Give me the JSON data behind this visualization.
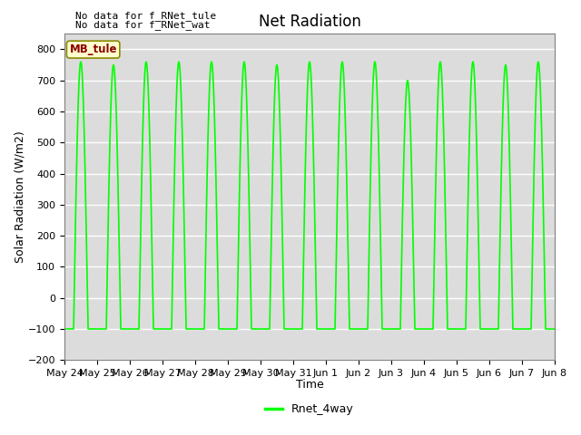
{
  "title": "Net Radiation",
  "xlabel": "Time",
  "ylabel": "Solar Radiation (W/m2)",
  "ylim": [
    -200,
    850
  ],
  "yticks": [
    -200,
    -100,
    0,
    100,
    200,
    300,
    400,
    500,
    600,
    700,
    800
  ],
  "line_color": "#00FF00",
  "line_width": 1.2,
  "background_color": "#DCDCDC",
  "legend_label": "Rnet_4way",
  "legend_line_color": "#00FF00",
  "annotation_text1": "No data for f_RNet_tule",
  "annotation_text2": "No data for f̲RNet̲wat",
  "box_label": "MB_tule",
  "box_text_color": "#8B0000",
  "box_bg_color": "#FFFFD0",
  "box_edge_color": "#8B8B00",
  "x_tick_labels": [
    "May 24",
    "May 25",
    "May 26",
    "May 27",
    "May 28",
    "May 29",
    "May 30",
    "May 31",
    "Jun 1",
    "Jun 2",
    "Jun 3",
    "Jun 4",
    "Jun 5",
    "Jun 6",
    "Jun 7",
    "Jun 8"
  ],
  "num_days": 15,
  "peak_value": 760,
  "trough_value": -100,
  "night_value": -100,
  "title_fontsize": 12,
  "axis_fontsize": 9,
  "tick_fontsize": 8,
  "figwidth": 6.4,
  "figheight": 4.8,
  "dpi": 100
}
